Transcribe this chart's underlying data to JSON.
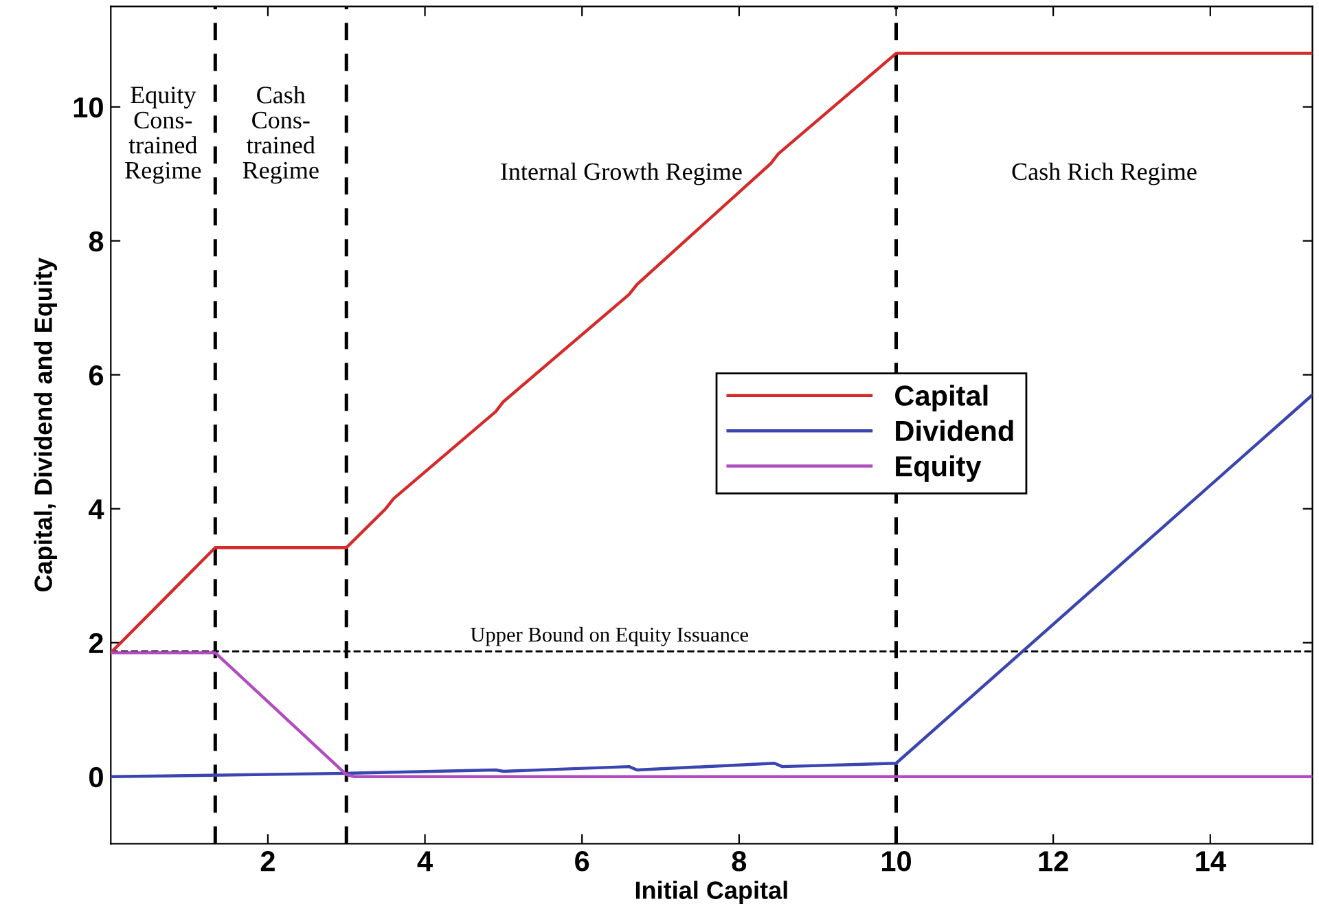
{
  "chart_data": {
    "type": "line",
    "xlabel": "Initial Capital",
    "ylabel": "Capital, Dividend and Equity",
    "xlim": [
      0,
      15.3
    ],
    "ylim": [
      -1,
      11.5
    ],
    "xticks": [
      2,
      4,
      6,
      8,
      10,
      12,
      14
    ],
    "yticks": [
      0,
      2,
      4,
      6,
      8,
      10
    ],
    "grid": false,
    "legend": "center",
    "marker": "none",
    "line_style": "solid",
    "series": [
      {
        "name": "Capital",
        "color": "#d42a2a",
        "x": [
          0,
          1.33,
          3.0,
          3.5,
          3.6,
          4.9,
          5.0,
          6.6,
          6.7,
          8.4,
          8.5,
          10.0,
          15.3
        ],
        "values": [
          1.85,
          3.42,
          3.42,
          4.0,
          4.15,
          5.45,
          5.6,
          7.2,
          7.35,
          9.15,
          9.3,
          10.8,
          10.8
        ]
      },
      {
        "name": "Dividend",
        "color": "#3a45b0",
        "x": [
          0,
          3.0,
          4.9,
          5.0,
          6.6,
          6.7,
          8.45,
          8.55,
          10.0,
          15.3
        ],
        "values": [
          0,
          0.05,
          0.1,
          0.08,
          0.15,
          0.1,
          0.2,
          0.15,
          0.2,
          5.7
        ]
      },
      {
        "name": "Equity",
        "color": "#b04cc0",
        "x": [
          0,
          1.33,
          3.0,
          3.1,
          15.3
        ],
        "values": [
          1.85,
          1.85,
          0.03,
          0,
          0
        ]
      }
    ],
    "ref_lines": [
      {
        "axis": "x",
        "value": 1.33,
        "color": "#000000",
        "line_style": "dashed"
      },
      {
        "axis": "x",
        "value": 3.0,
        "color": "#000000",
        "line_style": "dashed"
      },
      {
        "axis": "x",
        "value": 10.0,
        "color": "#000000",
        "line_style": "dashed"
      },
      {
        "axis": "y",
        "value": 1.87,
        "label": "Upper Bound on Equity Issuance",
        "color": "#000000",
        "line_style": "dashed"
      }
    ],
    "annotations": [
      "Equity\nCons-\ntrained\nRegime",
      "Cash\nCons-\ntrained\nRegime",
      "Internal Growth Regime",
      "Cash Rich Regime"
    ]
  }
}
